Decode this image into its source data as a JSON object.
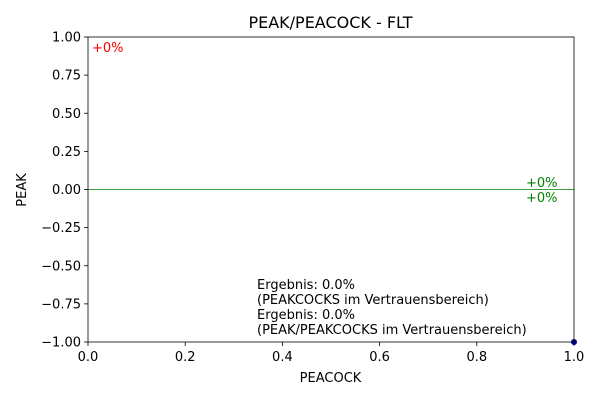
{
  "chart_data": {
    "type": "line",
    "title": "PEAK/PEACOCK - FLT",
    "xlabel": "PEACOCK",
    "ylabel": "PEAK",
    "xlim": [
      0.0,
      1.0
    ],
    "ylim": [
      -1.0,
      1.0
    ],
    "x_ticks": [
      0.0,
      0.2,
      0.4,
      0.6,
      0.8,
      1.0
    ],
    "x_tick_labels": [
      "0.0",
      "0.2",
      "0.4",
      "0.6",
      "0.8",
      "1.0"
    ],
    "y_ticks": [
      -1.0,
      -0.75,
      -0.5,
      -0.25,
      0.0,
      0.25,
      0.5,
      0.75,
      1.0
    ],
    "y_tick_labels": [
      "−1.00",
      "−0.75",
      "−0.50",
      "−0.25",
      "0.00",
      "0.25",
      "0.50",
      "0.75",
      "1.00"
    ],
    "grid": false,
    "reference_line": {
      "y": 0.0,
      "color": "#008000"
    },
    "points": [
      {
        "x": 1.0,
        "y": -1.0,
        "color": "#00008b"
      }
    ],
    "annotations": {
      "top_left": {
        "text": "+0%",
        "color": "#ff0000"
      },
      "right_upper": {
        "text": "+0%",
        "color": "#008000"
      },
      "right_lower": {
        "text": "+0%",
        "color": "#008000"
      }
    },
    "info_lines": [
      "Ergebnis: 0.0%",
      "(PEAKCOCKS im Vertrauensbereich)",
      "Ergebnis: 0.0%",
      "(PEAK/PEAKCOCKS im Vertrauensbereich)"
    ]
  }
}
